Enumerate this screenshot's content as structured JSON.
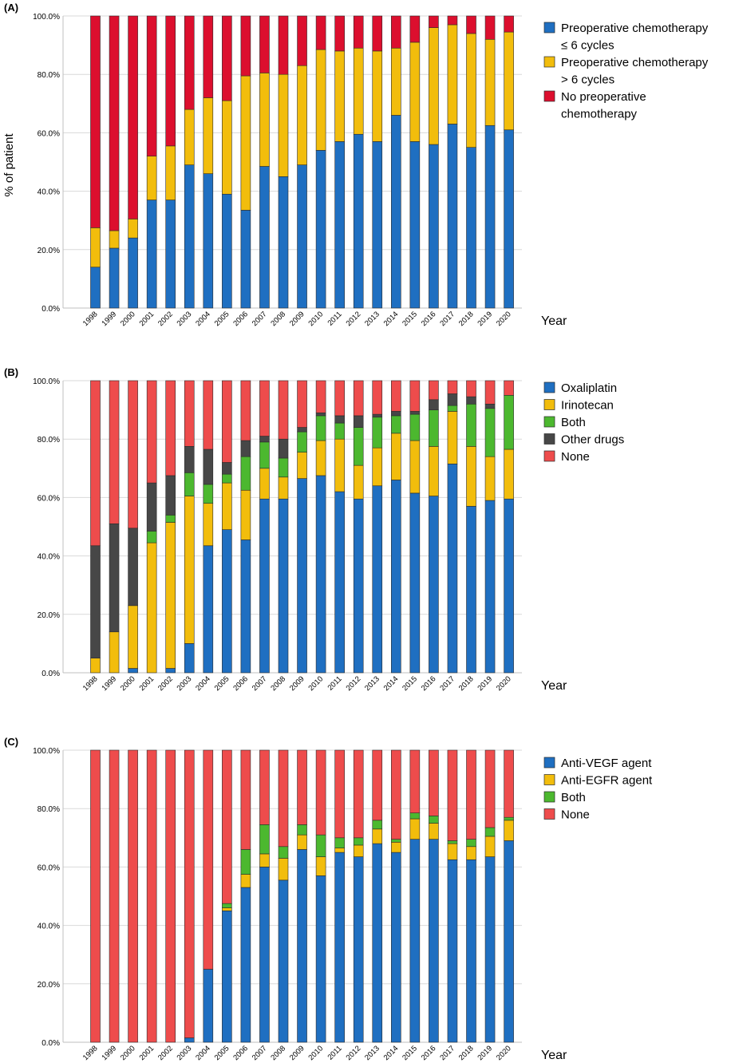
{
  "chart_data": [
    {
      "panel": "(A)",
      "type": "bar",
      "stacked": true,
      "ylabel": "% of patient",
      "xlabel": "Year",
      "ylim": [
        0,
        100
      ],
      "yticks": [
        "0.0%",
        "20.0%",
        "40.0%",
        "60.0%",
        "80.0%",
        "100.0%"
      ],
      "grid": true,
      "legend_position": "right",
      "categories": [
        "1998",
        "1999",
        "2000",
        "2001",
        "2002",
        "2003",
        "2004",
        "2005",
        "2006",
        "2007",
        "2008",
        "2009",
        "2010",
        "2011",
        "2012",
        "2013",
        "2014",
        "2015",
        "2016",
        "2017",
        "2018",
        "2019",
        "2020"
      ],
      "series": [
        {
          "name": "Preoperative chemotherapy\n≤ 6 cycles",
          "color": "#1f6fc1",
          "values": [
            14,
            20.5,
            24,
            37,
            37,
            49,
            46,
            39,
            33.5,
            48.5,
            45,
            49,
            54,
            57,
            59.5,
            57,
            66,
            57,
            56,
            63,
            55,
            62.5,
            61
          ]
        },
        {
          "name": "Preoperative chemotherapy\n> 6 cycles",
          "color": "#f2bd0c",
          "values": [
            13.5,
            6,
            6.5,
            15,
            18.5,
            19,
            26,
            32,
            46,
            32,
            35,
            34,
            34.5,
            31,
            29.5,
            31,
            23,
            34,
            40,
            34,
            39,
            29.5,
            33.5
          ]
        },
        {
          "name": "No preoperative\nchemotherapy",
          "color": "#dc0f2e",
          "values": [
            72.5,
            73.5,
            69.5,
            48,
            44.5,
            32,
            28,
            29,
            20.5,
            19.5,
            20,
            17,
            11.5,
            12,
            11,
            12,
            11,
            9,
            4,
            3,
            6,
            8,
            5.5
          ]
        }
      ]
    },
    {
      "panel": "(B)",
      "type": "bar",
      "stacked": true,
      "ylabel": "",
      "xlabel": "Year",
      "ylim": [
        0,
        100
      ],
      "yticks": [
        "0.0%",
        "20.0%",
        "40.0%",
        "60.0%",
        "80.0%",
        "100.0%"
      ],
      "grid": true,
      "legend_position": "right",
      "categories": [
        "1998",
        "1999",
        "2000",
        "2001",
        "2002",
        "2003",
        "2004",
        "2005",
        "2006",
        "2007",
        "2008",
        "2009",
        "2010",
        "2011",
        "2012",
        "2013",
        "2014",
        "2015",
        "2016",
        "2017",
        "2018",
        "2019",
        "2020"
      ],
      "series": [
        {
          "name": "Oxaliplatin",
          "color": "#1f6fc1",
          "values": [
            0,
            0,
            1.5,
            0,
            1.5,
            10,
            43.5,
            49,
            45.5,
            59.5,
            59.5,
            66.5,
            67.5,
            62,
            59.5,
            64,
            66,
            61.5,
            60.5,
            71.5,
            57,
            59,
            59.5
          ]
        },
        {
          "name": "Irinotecan",
          "color": "#f2bd0c",
          "values": [
            5,
            14,
            21.5,
            44.5,
            50,
            50.5,
            14.5,
            16,
            17,
            10.5,
            7.5,
            9,
            12,
            18,
            11.5,
            13,
            16,
            18,
            17,
            18,
            20.5,
            15,
            17
          ]
        },
        {
          "name": "Both",
          "color": "#4cb82f",
          "values": [
            0,
            0,
            0,
            4,
            2.5,
            8,
            6.5,
            3,
            11.5,
            9,
            6.5,
            7,
            8.5,
            5.5,
            13,
            10.5,
            6,
            9,
            12.5,
            2,
            14.5,
            16.5,
            18.5
          ]
        },
        {
          "name": "Other drugs",
          "color": "#474747",
          "values": [
            38.5,
            37,
            26.5,
            16.5,
            13.5,
            9,
            12,
            4,
            5.5,
            2,
            6.5,
            1.5,
            1,
            2.5,
            4,
            1,
            1.5,
            1,
            3.5,
            4,
            2.5,
            1.5,
            0
          ]
        },
        {
          "name": "None",
          "color": "#ee4c4c",
          "values": [
            56.5,
            49,
            50.5,
            35,
            32.5,
            22.5,
            23.5,
            28,
            20.5,
            19,
            20,
            16,
            11,
            12,
            12,
            11.5,
            10.5,
            10.5,
            6.5,
            4.5,
            5.5,
            8,
            5
          ]
        }
      ]
    },
    {
      "panel": "(C)",
      "type": "bar",
      "stacked": true,
      "ylabel": "",
      "xlabel": "Year",
      "ylim": [
        0,
        100
      ],
      "yticks": [
        "0.0%",
        "20.0%",
        "40.0%",
        "60.0%",
        "80.0%",
        "100.0%"
      ],
      "grid": true,
      "legend_position": "right",
      "categories": [
        "1998",
        "1999",
        "2000",
        "2001",
        "2002",
        "2003",
        "2004",
        "2005",
        "2006",
        "2007",
        "2008",
        "2009",
        "2010",
        "2011",
        "2012",
        "2013",
        "2014",
        "2015",
        "2016",
        "2017",
        "2018",
        "2019",
        "2020"
      ],
      "series": [
        {
          "name": "Anti-VEGF agent",
          "color": "#1f6fc1",
          "values": [
            0,
            0,
            0,
            0,
            0,
            1.5,
            25,
            45,
            53,
            60,
            55.5,
            66,
            57,
            65,
            63.5,
            68,
            65,
            69.5,
            69.5,
            62.5,
            62.5,
            63.5,
            69
          ]
        },
        {
          "name": "Anti-EGFR agent",
          "color": "#f2bd0c",
          "values": [
            0,
            0,
            0,
            0,
            0,
            0,
            0,
            1,
            4.5,
            4.5,
            7.5,
            5,
            6.5,
            1.5,
            4,
            5,
            3.5,
            7,
            5.5,
            5.5,
            4.5,
            7,
            7
          ]
        },
        {
          "name": "Both",
          "color": "#4cb82f",
          "values": [
            0,
            0,
            0,
            0,
            0,
            0,
            0,
            1.5,
            8.5,
            10,
            4,
            3.5,
            7.5,
            3.5,
            2.5,
            3,
            1,
            2,
            2.5,
            1,
            2.5,
            3,
            1
          ]
        },
        {
          "name": "None",
          "color": "#ee4c4c",
          "values": [
            100,
            100,
            100,
            100,
            100,
            98.5,
            75,
            52.5,
            34,
            25.5,
            33,
            25.5,
            29,
            30,
            30,
            24,
            30.5,
            21.5,
            22.5,
            31,
            30.5,
            26.5,
            23
          ]
        }
      ]
    }
  ]
}
